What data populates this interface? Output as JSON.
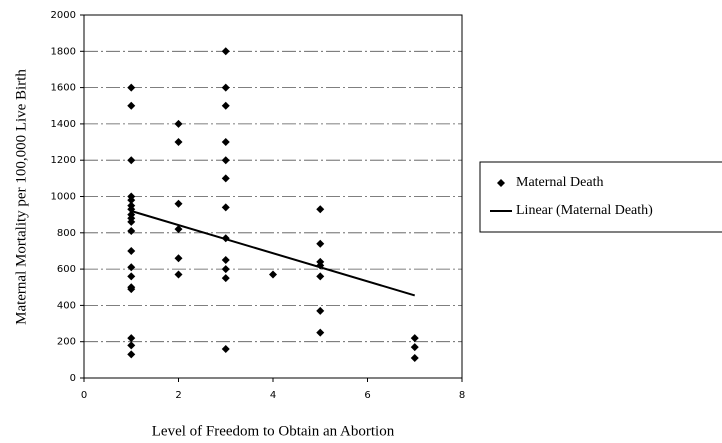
{
  "chart_data": {
    "type": "scatter",
    "xlabel": "Level of Freedom to Obtain an Abortion",
    "ylabel": "Maternal Mortality per 100,000 Live Birth",
    "xlim": [
      0,
      8
    ],
    "xticks": [
      0,
      2,
      4,
      6,
      8
    ],
    "ylim": [
      0,
      2000
    ],
    "yticks": [
      0,
      200,
      400,
      600,
      800,
      1000,
      1200,
      1400,
      1600,
      1800,
      2000
    ],
    "grid": true,
    "legend": "right",
    "series": [
      {
        "name": "Maternal Death",
        "style": "marker",
        "color": "#000000",
        "x": [
          1,
          1,
          1,
          1,
          1,
          1,
          1,
          1,
          1,
          1,
          1,
          1,
          1,
          1,
          1,
          1,
          1,
          1,
          1,
          2,
          2,
          2,
          2,
          2,
          2,
          3,
          3,
          3,
          3,
          3,
          3,
          3,
          3,
          3,
          3,
          3,
          3,
          4,
          5,
          5,
          5,
          5,
          5,
          5,
          5,
          7,
          7,
          7
        ],
        "values": [
          1600,
          1500,
          1200,
          1000,
          980,
          950,
          930,
          900,
          880,
          860,
          810,
          700,
          610,
          560,
          500,
          490,
          220,
          180,
          130,
          1400,
          1300,
          960,
          820,
          660,
          570,
          1800,
          1600,
          1500,
          1300,
          1200,
          1100,
          940,
          770,
          650,
          600,
          550,
          160,
          570,
          930,
          740,
          640,
          620,
          560,
          370,
          250,
          220,
          170,
          110
        ]
      },
      {
        "name": "Linear (Maternal Death)",
        "style": "line",
        "color": "#000000",
        "x": [
          1,
          7
        ],
        "values": [
          920,
          455
        ]
      }
    ]
  }
}
